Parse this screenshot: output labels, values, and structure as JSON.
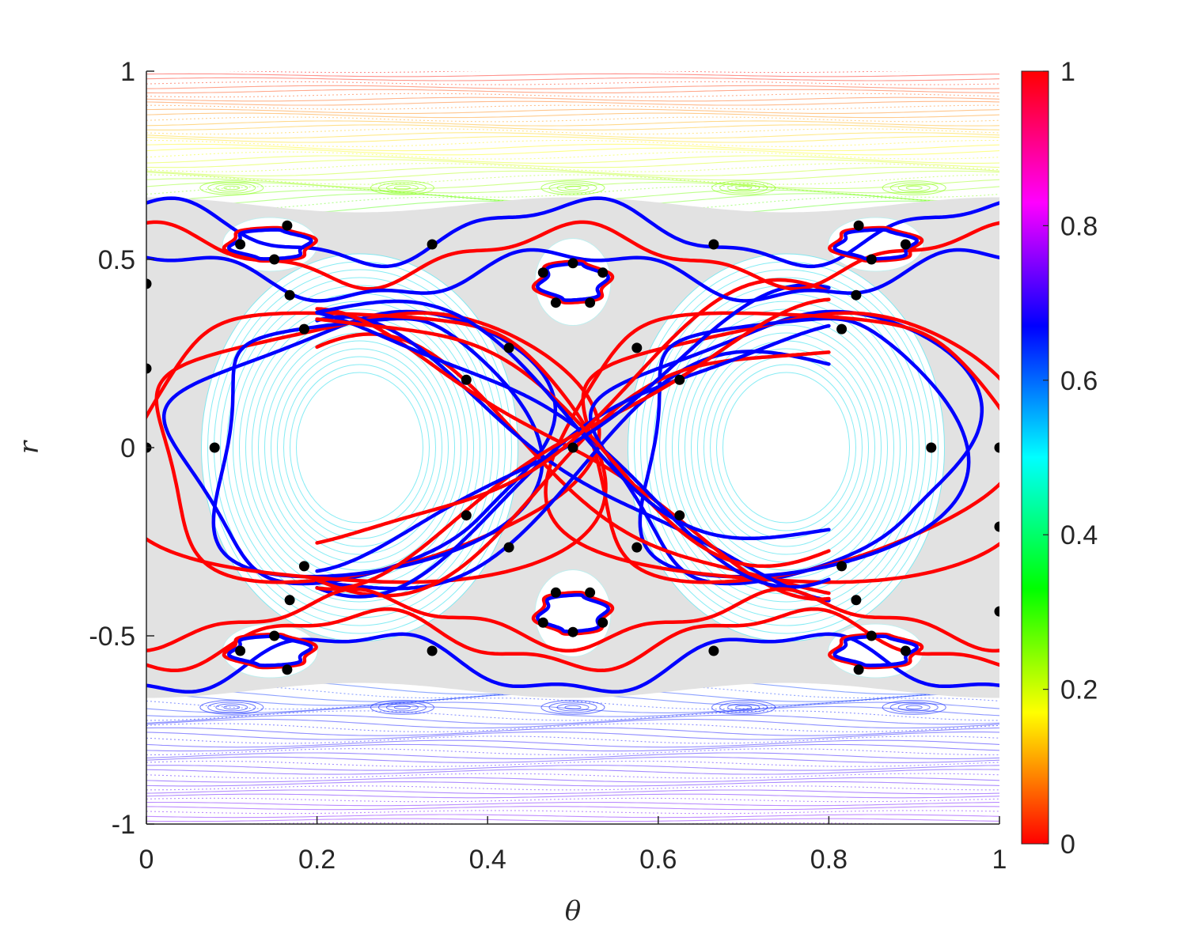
{
  "chart_data": {
    "type": "scatter",
    "title": "",
    "xlabel": "θ",
    "ylabel": "r",
    "xlim": [
      0,
      1
    ],
    "ylim": [
      -1,
      1
    ],
    "xticks": [
      "0",
      "0.2",
      "0.4",
      "0.6",
      "0.8",
      "1"
    ],
    "yticks": [
      "-1",
      "-0.5",
      "0",
      "0.5",
      "1"
    ],
    "grid": false,
    "colorbar": {
      "range": [
        0,
        1
      ],
      "ticks": [
        "0",
        "0.2",
        "0.4",
        "0.6",
        "0.8",
        "1"
      ],
      "colormap": "hsv-reversed"
    },
    "series": [
      {
        "kind": "poincare-orbits",
        "color": "hsv-by-initial-r",
        "outer_orbit_band_r": [
          0.52,
          1.0
        ],
        "vortex_centers": [
          [
            0.25,
            0.0
          ],
          [
            0.75,
            0.0
          ]
        ]
      },
      {
        "kind": "unstable-manifold",
        "color": "#ff0000"
      },
      {
        "kind": "stable-manifold",
        "color": "#0000ff"
      },
      {
        "kind": "periodic-points",
        "color": "#000000",
        "points": [
          [
            0.0,
            0.0
          ],
          [
            0.5,
            0.0
          ],
          [
            1.0,
            0.0
          ],
          [
            0.08,
            0.0
          ],
          [
            0.92,
            0.0
          ],
          [
            0.375,
            0.18
          ],
          [
            0.625,
            0.18
          ],
          [
            0.375,
            -0.18
          ],
          [
            0.625,
            -0.18
          ],
          [
            0.425,
            0.265
          ],
          [
            0.575,
            0.265
          ],
          [
            0.425,
            -0.265
          ],
          [
            0.575,
            -0.265
          ],
          [
            0.185,
            0.315
          ],
          [
            0.815,
            0.315
          ],
          [
            0.185,
            -0.315
          ],
          [
            0.815,
            -0.315
          ],
          [
            0.168,
            0.405
          ],
          [
            0.832,
            0.405
          ],
          [
            0.168,
            -0.405
          ],
          [
            0.832,
            -0.405
          ],
          [
            0.0,
            0.435
          ],
          [
            1.0,
            -0.435
          ],
          [
            0.0,
            0.21
          ],
          [
            1.0,
            -0.21
          ],
          [
            0.335,
            0.54
          ],
          [
            0.665,
            0.54
          ],
          [
            0.335,
            -0.54
          ],
          [
            0.665,
            -0.54
          ],
          [
            0.5,
            0.49
          ],
          [
            0.465,
            0.465
          ],
          [
            0.535,
            0.465
          ],
          [
            0.48,
            0.385
          ],
          [
            0.52,
            0.385
          ],
          [
            0.5,
            -0.49
          ],
          [
            0.465,
            -0.465
          ],
          [
            0.535,
            -0.465
          ],
          [
            0.48,
            -0.385
          ],
          [
            0.52,
            -0.385
          ],
          [
            0.11,
            0.54
          ],
          [
            0.165,
            0.59
          ],
          [
            0.15,
            0.5
          ],
          [
            0.835,
            0.59
          ],
          [
            0.89,
            0.54
          ],
          [
            0.85,
            0.5
          ],
          [
            0.11,
            -0.54
          ],
          [
            0.165,
            -0.59
          ],
          [
            0.15,
            -0.5
          ],
          [
            0.835,
            -0.59
          ],
          [
            0.89,
            -0.54
          ],
          [
            0.85,
            -0.5
          ]
        ]
      }
    ]
  }
}
